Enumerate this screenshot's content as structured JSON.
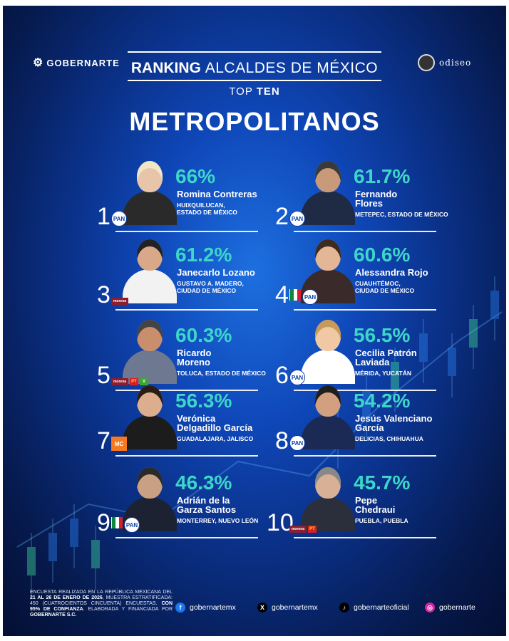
{
  "brands": {
    "left": "GOBERNARTE",
    "right": "odiseo"
  },
  "header": {
    "ranking": "RANKING",
    "title_rest": "ALCALDES DE MÉXICO",
    "top": "TOP",
    "ten": "TEN",
    "subtitle": "METROPOLITANOS"
  },
  "entries": [
    {
      "rank": "1",
      "pct": "66%",
      "name": [
        "Romina Contreras"
      ],
      "place": [
        "HUIXQUILUCAN,",
        "ESTADO DE MÉXICO"
      ],
      "parties": [
        "PAN"
      ]
    },
    {
      "rank": "2",
      "pct": "61.7%",
      "name": [
        "Fernando",
        "Flores"
      ],
      "place": [
        "METEPEC, ESTADO DE MÉXICO"
      ],
      "parties": [
        "PAN"
      ]
    },
    {
      "rank": "3",
      "pct": "61.2%",
      "name": [
        "Janecarlo Lozano"
      ],
      "place": [
        "GUSTAVO A. MADERO,",
        "CIUDAD DE MÉXICO"
      ],
      "parties": [
        "morena"
      ]
    },
    {
      "rank": "4",
      "pct": "60.6%",
      "name": [
        "Alessandra Rojo"
      ],
      "place": [
        "CUAUHTÉMOC,",
        "CIUDAD DE MÉXICO"
      ],
      "parties": [
        "PRI",
        "PAN"
      ]
    },
    {
      "rank": "5",
      "pct": "60.3%",
      "name": [
        "Ricardo",
        "Moreno"
      ],
      "place": [
        "TOLUCA, ESTADO DE MÉXICO"
      ],
      "parties": [
        "morena",
        "PT",
        "V"
      ]
    },
    {
      "rank": "6",
      "pct": "56.5%",
      "name": [
        "Cecilia Patrón",
        "Laviada"
      ],
      "place": [
        "MÉRIDA, YUCATÁN"
      ],
      "parties": [
        "PAN"
      ]
    },
    {
      "rank": "7",
      "pct": "56.3%",
      "name": [
        "Verónica",
        "Delgadillo García"
      ],
      "place": [
        "GUADALAJARA, JALISCO"
      ],
      "parties": [
        "MC"
      ]
    },
    {
      "rank": "8",
      "pct": "54.2%",
      "name": [
        "Jesús Valenciano",
        "García"
      ],
      "place": [
        "DELICIAS, CHIHUAHUA"
      ],
      "parties": [
        "PAN"
      ]
    },
    {
      "rank": "9",
      "pct": "46.3%",
      "name": [
        "Adrián de la",
        "Garza Santos"
      ],
      "place": [
        "MONTERREY, NUEVO LEÓN"
      ],
      "parties": [
        "PRI",
        "PAN"
      ]
    },
    {
      "rank": "10",
      "pct": "45.7%",
      "name": [
        "Pepe",
        "Chedraui"
      ],
      "place": [
        "PUEBLA, PUEBLA"
      ],
      "parties": [
        "morena",
        "PT"
      ]
    }
  ],
  "footnote": {
    "p1": "ENCUESTA REALIZADA EN LA REPÚBLICA MEXICANA DEL ",
    "dates": "21 AL 26 DE ENERO DE 2026",
    "p2": ", MUESTRA ESTRATIFICADA: 450 (CUATROCIENTOS CINCUENTA) ENCUESTAS. ",
    "conf": "CON 95% DE CONFIANZA",
    "p3": ". ELABORADA Y FINANCIADA POR ",
    "firm": "GOBERNARTE S.C."
  },
  "social": [
    {
      "icon": "facebook-icon",
      "handle": "gobernartemx",
      "color": "#1877f2",
      "glyph": "f"
    },
    {
      "icon": "x-icon",
      "handle": "gobernartemx",
      "color": "#000000",
      "glyph": "X"
    },
    {
      "icon": "tiktok-icon",
      "handle": "gobernarteoficial",
      "color": "#000000",
      "glyph": "♪"
    },
    {
      "icon": "instagram-icon",
      "handle": "gobernarte",
      "color": "#d6249f",
      "glyph": "◎"
    }
  ],
  "colors": {
    "accent": "#3dd6c9",
    "background": "#0f47b8",
    "pan": "#0f3ea8",
    "morena": "#8c1f2f"
  }
}
